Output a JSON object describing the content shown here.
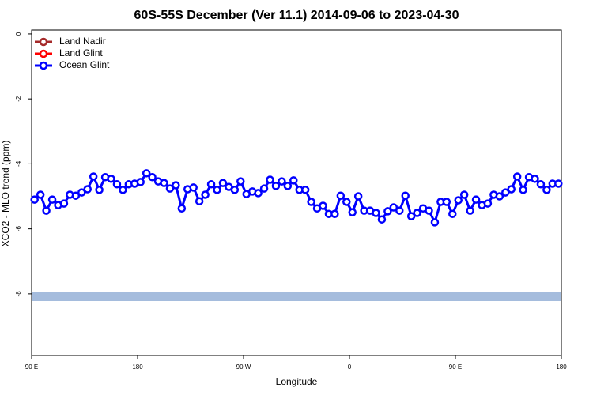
{
  "chart_data": {
    "type": "line",
    "title": "60S-55S December (Ver 11.1)   2014-09-06 to 2023-04-30",
    "x_label": "Longitude",
    "y_label": "XCO2 - MLO trend (ppm)",
    "xlim": [
      90,
      540
    ],
    "ylim": [
      -9.9,
      0.12
    ],
    "xticks": [
      {
        "value": 90,
        "label": "90 E"
      },
      180,
      {
        "value": 270,
        "label": "90 W"
      },
      {
        "value": 360,
        "label": "0"
      },
      {
        "value": 450,
        "label": "90 E"
      },
      {
        "value": 540,
        "label": "180"
      }
    ],
    "yticks": [
      0,
      -2,
      -4,
      -6,
      -8
    ],
    "legend": "upper left",
    "x": [
      92.5,
      97.5,
      102.5,
      107.5,
      112.5,
      117.5,
      122.5,
      127.5,
      132.5,
      137.5,
      142.5,
      147.5,
      152.5,
      157.5,
      162.5,
      167.5,
      172.5,
      177.5,
      182.5,
      187.5,
      192.5,
      197.5,
      202.5,
      207.5,
      212.5,
      217.5,
      222.5,
      227.5,
      232.5,
      237.5,
      242.5,
      247.5,
      252.5,
      257.5,
      262.5,
      267.5,
      272.5,
      277.5,
      282.5,
      287.5,
      292.5,
      297.5,
      302.5,
      307.5,
      312.5,
      317.5,
      322.5,
      327.5,
      332.5,
      337.5,
      342.5,
      347.5,
      352.5,
      357.5,
      362.5,
      367.5,
      372.5,
      377.5,
      382.5,
      387.5,
      392.5,
      397.5,
      402.5,
      407.5,
      412.5,
      417.5,
      422.5,
      427.5,
      432.5,
      437.5,
      442.5,
      447.5,
      452.5,
      457.5,
      462.5,
      467.5,
      472.5,
      477.5,
      482.5,
      487.5,
      492.5,
      497.5,
      502.5,
      507.5,
      512.5,
      517.5,
      522.5,
      527.5,
      532.5,
      537.5
    ],
    "series": [
      {
        "name": "Land Nadir",
        "color": "#a52a2a",
        "values": [
          null,
          null,
          null,
          null,
          null,
          null,
          null,
          null,
          null,
          null,
          null,
          null,
          null,
          null,
          null,
          null,
          null,
          null,
          null,
          null,
          null,
          null,
          null,
          null,
          null,
          null,
          null,
          null,
          null,
          null,
          null,
          null,
          null,
          null,
          null,
          null,
          null,
          null,
          null,
          null,
          null,
          null,
          null,
          null,
          null,
          null,
          null,
          null,
          null,
          null,
          null,
          null,
          null,
          null,
          null,
          null,
          null,
          null,
          null,
          null,
          null,
          null,
          null,
          null,
          null,
          null,
          null,
          null,
          null,
          null,
          null,
          null,
          null,
          null,
          null,
          null,
          null,
          null,
          null,
          null,
          null,
          null,
          null,
          null,
          null,
          null,
          null,
          null,
          null,
          null
        ]
      },
      {
        "name": "Land Glint",
        "color": "#ff0000",
        "values": [
          null,
          null,
          null,
          null,
          null,
          null,
          null,
          null,
          null,
          null,
          null,
          null,
          null,
          null,
          null,
          null,
          null,
          null,
          null,
          null,
          null,
          null,
          null,
          null,
          null,
          null,
          null,
          null,
          null,
          null,
          null,
          null,
          null,
          null,
          null,
          null,
          null,
          null,
          null,
          null,
          null,
          null,
          null,
          null,
          null,
          null,
          null,
          null,
          null,
          null,
          null,
          null,
          null,
          null,
          null,
          null,
          null,
          null,
          null,
          null,
          null,
          null,
          null,
          null,
          null,
          null,
          null,
          null,
          null,
          null,
          null,
          null,
          null,
          null,
          null,
          null,
          null,
          null,
          null,
          null,
          null,
          null,
          null,
          null,
          null,
          null,
          null,
          null,
          null,
          null
        ]
      },
      {
        "name": "Ocean Glint",
        "color": "#0000ff",
        "values": [
          -5.1,
          -4.95,
          -5.44,
          -5.1,
          -5.27,
          -5.22,
          -4.95,
          -4.98,
          -4.88,
          -4.78,
          -4.39,
          -4.8,
          -4.41,
          -4.46,
          -4.63,
          -4.8,
          -4.63,
          -4.61,
          -4.56,
          -4.29,
          -4.41,
          -4.54,
          -4.59,
          -4.76,
          -4.66,
          -5.37,
          -4.78,
          -4.73,
          -5.15,
          -4.95,
          -4.63,
          -4.8,
          -4.59,
          -4.71,
          -4.8,
          -4.54,
          -4.93,
          -4.85,
          -4.9,
          -4.76,
          -4.49,
          -4.68,
          -4.54,
          -4.68,
          -4.51,
          -4.8,
          -4.8,
          -5.17,
          -5.37,
          -5.29,
          -5.54,
          -5.54,
          -4.98,
          -5.17,
          -5.49,
          -5.0,
          -5.44,
          -5.44,
          -5.51,
          -5.71,
          -5.46,
          -5.34,
          -5.44,
          -4.98,
          -5.61,
          -5.51,
          -5.37,
          -5.44,
          -5.8,
          -5.17,
          -5.17,
          -5.54,
          -5.12,
          -4.95,
          -5.44,
          -5.1,
          -5.27,
          -5.22,
          -4.95,
          -5.0,
          -4.88,
          -4.78,
          -4.39,
          -4.8,
          -4.41,
          -4.46,
          -4.63,
          -4.8,
          -4.61,
          -4.61
        ]
      }
    ]
  }
}
